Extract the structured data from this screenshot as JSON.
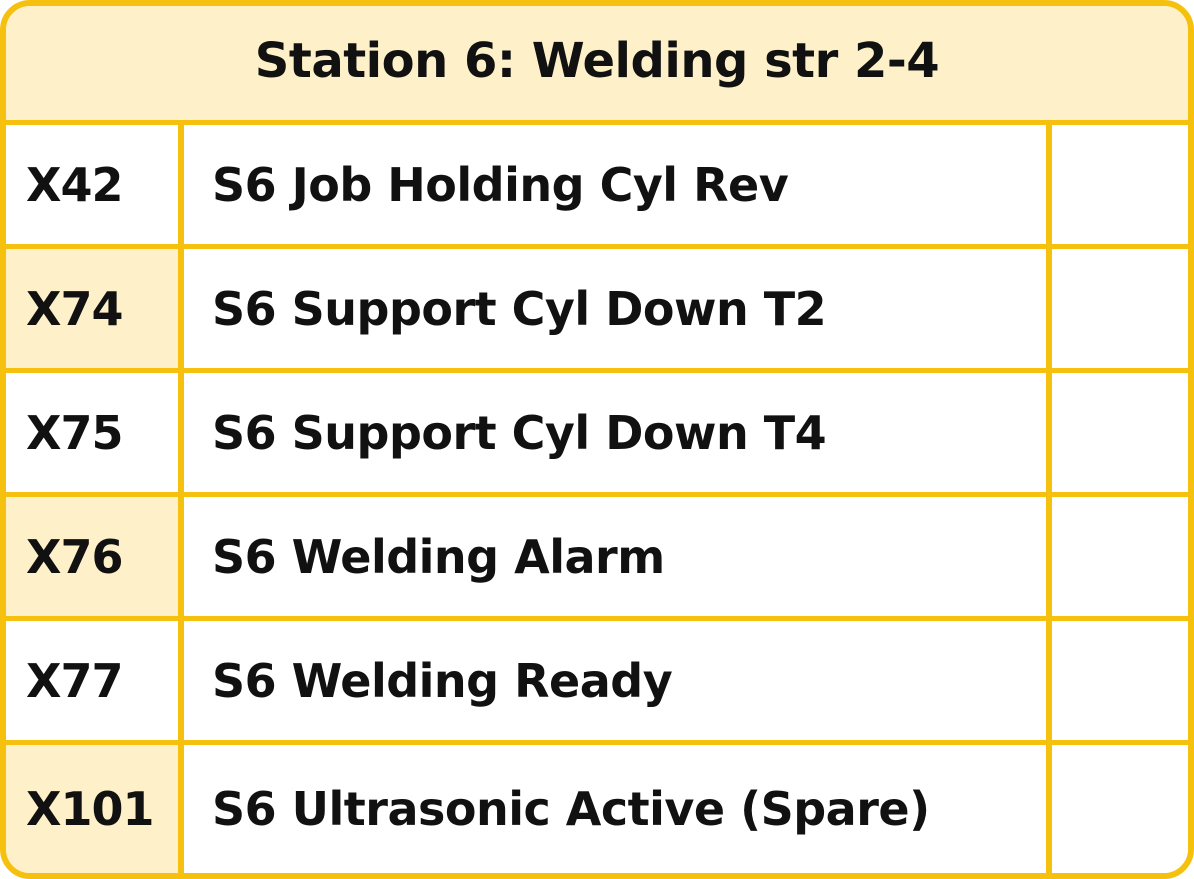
{
  "header": {
    "title": "Station 6: Welding str 2-4"
  },
  "colors": {
    "border": "#f6c10e",
    "header_fill": "#fef1c9",
    "shaded_cell": "#fef1c9",
    "text": "#111111"
  },
  "rows": [
    {
      "code": "X42",
      "description": "S6 Job Holding Cyl Rev",
      "status": ""
    },
    {
      "code": "X74",
      "description": "S6 Support Cyl Down T2",
      "status": ""
    },
    {
      "code": "X75",
      "description": "S6 Support Cyl Down T4",
      "status": ""
    },
    {
      "code": "X76",
      "description": "S6 Welding Alarm",
      "status": ""
    },
    {
      "code": "X77",
      "description": "S6 Welding Ready",
      "status": ""
    },
    {
      "code": "X101",
      "description": "S6 Ultrasonic Active (Spare)",
      "status": ""
    }
  ]
}
